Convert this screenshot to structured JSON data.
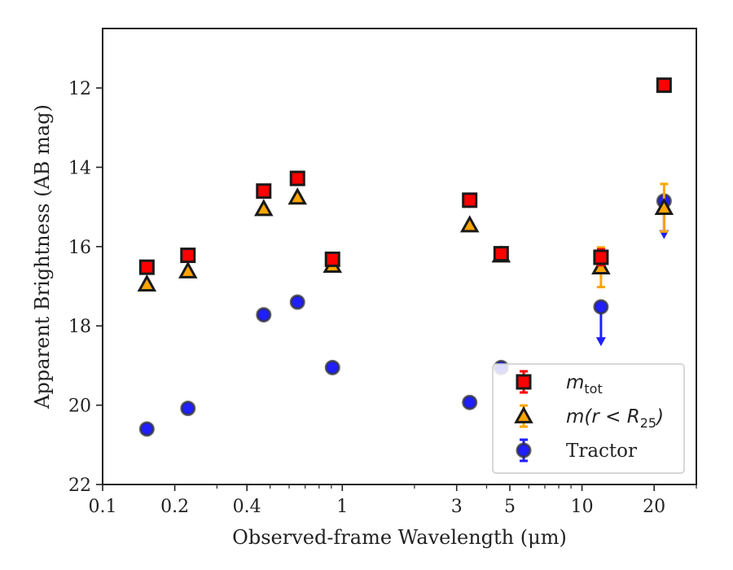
{
  "chart_data": {
    "type": "scatter",
    "xlabel": "Observed-frame Wavelength (μm)",
    "ylabel": "Apparent Brightness (AB mag)",
    "xscale": "log",
    "xlim": [
      0.1,
      30
    ],
    "ylim": [
      22,
      10.5
    ],
    "y_inverted": true,
    "xticks": [
      {
        "value": 0.1,
        "label": "0.1"
      },
      {
        "value": 0.2,
        "label": "0.2"
      },
      {
        "value": 0.4,
        "label": "0.4"
      },
      {
        "value": 1,
        "label": "1"
      },
      {
        "value": 3,
        "label": "3"
      },
      {
        "value": 5,
        "label": "5"
      },
      {
        "value": 10,
        "label": "10"
      },
      {
        "value": 20,
        "label": "20"
      }
    ],
    "yticks": [
      {
        "value": 12,
        "label": "12"
      },
      {
        "value": 14,
        "label": "14"
      },
      {
        "value": 16,
        "label": "16"
      },
      {
        "value": 18,
        "label": "18"
      },
      {
        "value": 20,
        "label": "20"
      },
      {
        "value": 22,
        "label": "22"
      }
    ],
    "grid": false,
    "legend_position": "lower-right",
    "series": [
      {
        "name": "m_tot",
        "marker": "square",
        "face_color": "#ff0000",
        "edge_color": "#1a1a1a",
        "err_color": "#ff0000",
        "points": [
          {
            "x": 0.153,
            "y": 16.52,
            "yerr": 0.05
          },
          {
            "x": 0.227,
            "y": 16.22,
            "yerr": 0.05
          },
          {
            "x": 0.47,
            "y": 14.6,
            "yerr": 0.05
          },
          {
            "x": 0.65,
            "y": 14.28,
            "yerr": 0.05
          },
          {
            "x": 0.91,
            "y": 16.32,
            "yerr": 0.08
          },
          {
            "x": 3.4,
            "y": 14.83,
            "yerr": 0.05
          },
          {
            "x": 4.6,
            "y": 16.18,
            "yerr": 0.08
          },
          {
            "x": 12.0,
            "y": 16.27,
            "yerr": 0.2
          },
          {
            "x": 22.0,
            "y": 11.93,
            "yerr": 0.05
          }
        ]
      },
      {
        "name": "m(r < R25)",
        "marker": "triangle",
        "face_color": "#ffa500",
        "edge_color": "#1a1a1a",
        "err_color": "#ffa500",
        "points": [
          {
            "x": 0.153,
            "y": 16.95,
            "yerr": 0.05
          },
          {
            "x": 0.227,
            "y": 16.62,
            "yerr": 0.05
          },
          {
            "x": 0.47,
            "y": 15.05,
            "yerr": 0.05
          },
          {
            "x": 0.65,
            "y": 14.76,
            "yerr": 0.05
          },
          {
            "x": 0.91,
            "y": 16.48,
            "yerr": 0.05
          },
          {
            "x": 3.4,
            "y": 15.46,
            "yerr": 0.05
          },
          {
            "x": 4.6,
            "y": 16.22,
            "yerr": 0.05
          },
          {
            "x": 12.0,
            "y": 16.52,
            "yerr": 0.5
          },
          {
            "x": 22.0,
            "y": 15.02,
            "yerr": 0.6
          }
        ]
      },
      {
        "name": "Tractor",
        "marker": "circle",
        "face_color": "#1f1fff",
        "edge_color": "#333333",
        "err_color": "#1f1fff",
        "points": [
          {
            "x": 0.153,
            "y": 20.6,
            "yerr": 0.05
          },
          {
            "x": 0.227,
            "y": 20.08,
            "yerr": 0.05
          },
          {
            "x": 0.47,
            "y": 17.72,
            "yerr": 0.05
          },
          {
            "x": 0.65,
            "y": 17.4,
            "yerr": 0.05
          },
          {
            "x": 0.91,
            "y": 19.05,
            "yerr": 0.05
          },
          {
            "x": 3.4,
            "y": 19.93,
            "yerr": 0.05
          },
          {
            "x": 4.6,
            "y": 19.05,
            "yerr": 0.05
          },
          {
            "x": 12.0,
            "y": 17.52,
            "yerr": 0.05,
            "upper_limit": true,
            "arrow_to": 18.45
          },
          {
            "x": 22.0,
            "y": 14.85,
            "yerr": 0.05,
            "upper_limit": true,
            "arrow_to": 15.75
          }
        ]
      }
    ],
    "legend": [
      {
        "label": "m",
        "sub": "tot",
        "style": "math"
      },
      {
        "label": "m(r < R",
        "sub": "25",
        "close": ")",
        "style": "math"
      },
      {
        "label": "Tractor",
        "style": "text"
      }
    ]
  }
}
